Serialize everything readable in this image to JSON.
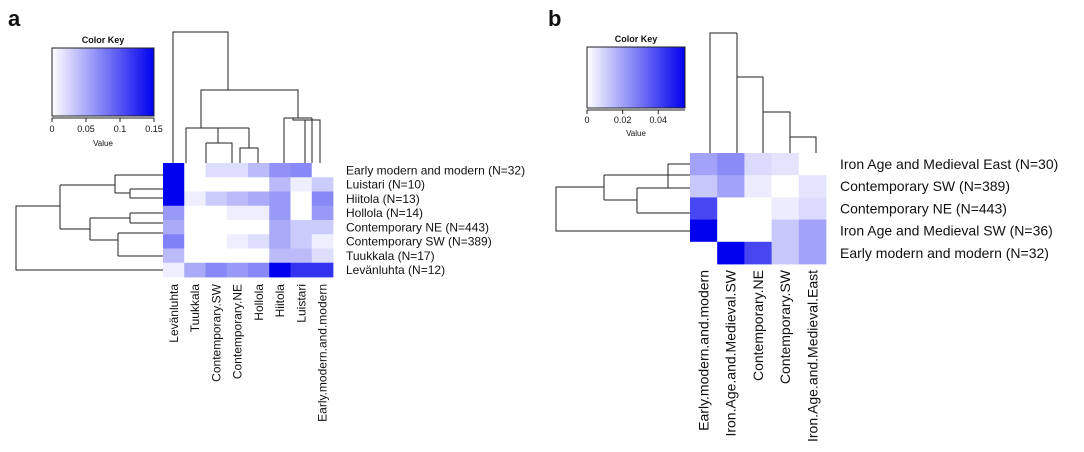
{
  "figure": {
    "panel_a_label": "a",
    "panel_b_label": "b"
  },
  "chart_data": [
    {
      "type": "heatmap",
      "panel": "a",
      "color_key": {
        "title": "Color Key",
        "axis_label": "Value",
        "ticks": [
          "0",
          "0.05",
          "0.1",
          "0.15"
        ],
        "range": [
          0,
          0.15
        ],
        "low_color": "#ffffff",
        "high_color": "#0000ee"
      },
      "rows": [
        "Early modern and modern (N=32)",
        "Luistari (N=10)",
        "Hiitola (N=13)",
        "Hollola (N=14)",
        "Contemporary NE (N=443)",
        "Contemporary SW (N=389)",
        "Tuukkala (N=17)",
        "Levänluhta (N=12)"
      ],
      "columns": [
        "Levänluhta",
        "Tuukkala",
        "Contemporary.SW",
        "Contemporary.NE",
        "Hollola",
        "Hiitola",
        "Luistari",
        "Early.modern.and.modern"
      ],
      "values": [
        [
          0.15,
          0.0,
          0.02,
          0.02,
          0.04,
          0.065,
          0.07,
          0.0
        ],
        [
          0.15,
          0.0,
          0.0,
          0.0,
          0.0,
          0.04,
          0.01,
          0.03
        ],
        [
          0.15,
          0.01,
          0.03,
          0.04,
          0.05,
          0.06,
          0.0,
          0.07
        ],
        [
          0.06,
          0.0,
          0.0,
          0.01,
          0.01,
          0.06,
          0.0,
          0.06
        ],
        [
          0.05,
          0.0,
          0.0,
          0.0,
          0.0,
          0.05,
          0.03,
          0.03
        ],
        [
          0.075,
          0.0,
          0.0,
          0.01,
          0.02,
          0.05,
          0.03,
          0.01
        ],
        [
          0.04,
          0.0,
          0.0,
          0.0,
          0.0,
          0.04,
          0.04,
          0.02
        ],
        [
          0.01,
          0.05,
          0.07,
          0.06,
          0.07,
          0.15,
          0.12,
          0.12
        ]
      ]
    },
    {
      "type": "heatmap",
      "panel": "b",
      "color_key": {
        "title": "Color Key",
        "axis_label": "Value",
        "ticks": [
          "0",
          "0.02",
          "0.04"
        ],
        "range": [
          0,
          0.055
        ],
        "low_color": "#ffffff",
        "high_color": "#0000ee"
      },
      "rows": [
        "Iron Age and Medieval East (N=30)",
        "Contemporary SW (N=389)",
        "Contemporary NE (N=443)",
        "Iron Age and Medieval SW (N=36)",
        "Early modern and modern (N=32)"
      ],
      "columns": [
        "Early.modern.and.modern",
        "Iron.Age.and.Medieval.SW",
        "Contemporary.NE",
        "Contemporary.SW",
        "Iron.Age.and.Medieval.East"
      ],
      "values": [
        [
          0.02,
          0.025,
          0.008,
          0.006,
          0.0
        ],
        [
          0.012,
          0.02,
          0.004,
          0.0,
          0.006
        ],
        [
          0.04,
          0.0,
          0.0,
          0.004,
          0.008
        ],
        [
          0.055,
          0.0,
          0.0,
          0.012,
          0.02
        ],
        [
          0.0,
          0.055,
          0.04,
          0.012,
          0.02
        ]
      ]
    }
  ]
}
